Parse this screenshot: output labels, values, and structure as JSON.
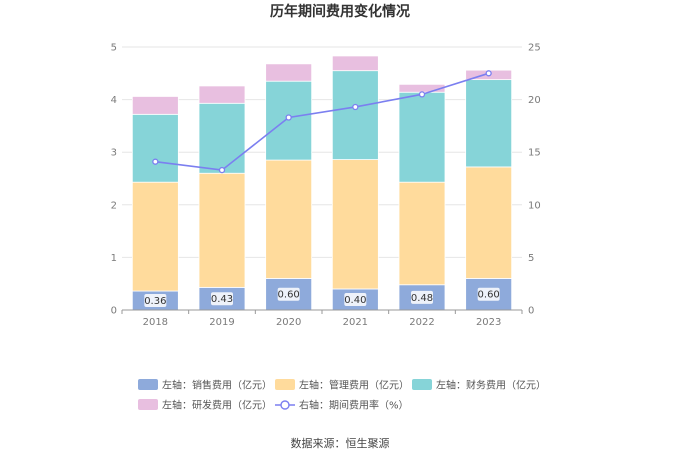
{
  "chart_data": {
    "type": "bar",
    "title": "历年期间费用变化情况",
    "categories": [
      "2018",
      "2019",
      "2020",
      "2021",
      "2022",
      "2023"
    ],
    "stacked": true,
    "y_left": {
      "min": 0,
      "max": 5,
      "ticks": [
        0,
        1,
        2,
        3,
        4,
        5
      ]
    },
    "y_right": {
      "min": 0,
      "max": 25,
      "ticks": [
        0,
        5,
        10,
        15,
        20,
        25
      ]
    },
    "grid": true,
    "legend_position": "bottom",
    "series": [
      {
        "name": "左轴：销售费用（亿元）",
        "axis": "left",
        "kind": "bar",
        "color": "#8eaadb",
        "values": [
          0.36,
          0.43,
          0.6,
          0.4,
          0.48,
          0.6
        ],
        "labels": [
          "0.36",
          "0.43",
          "0.60",
          "0.40",
          "0.48",
          "0.60"
        ]
      },
      {
        "name": "左轴：管理费用（亿元）",
        "axis": "left",
        "kind": "bar",
        "color": "#ffdb9c",
        "values": [
          2.07,
          2.17,
          2.25,
          2.46,
          1.95,
          2.12
        ]
      },
      {
        "name": "左轴：财务费用（亿元）",
        "axis": "left",
        "kind": "bar",
        "color": "#86d4d8",
        "values": [
          1.29,
          1.33,
          1.5,
          1.69,
          1.71,
          1.66
        ]
      },
      {
        "name": "左轴：研发费用（亿元）",
        "axis": "left",
        "kind": "bar",
        "color": "#e8bfe0",
        "values": [
          0.34,
          0.33,
          0.33,
          0.28,
          0.15,
          0.18
        ]
      },
      {
        "name": "右轴：期间费用率（%）",
        "axis": "right",
        "kind": "line",
        "color": "#7b7ff0",
        "values": [
          14.1,
          13.3,
          18.3,
          19.3,
          20.5,
          22.5
        ]
      }
    ]
  },
  "source": "数据来源：恒生聚源"
}
